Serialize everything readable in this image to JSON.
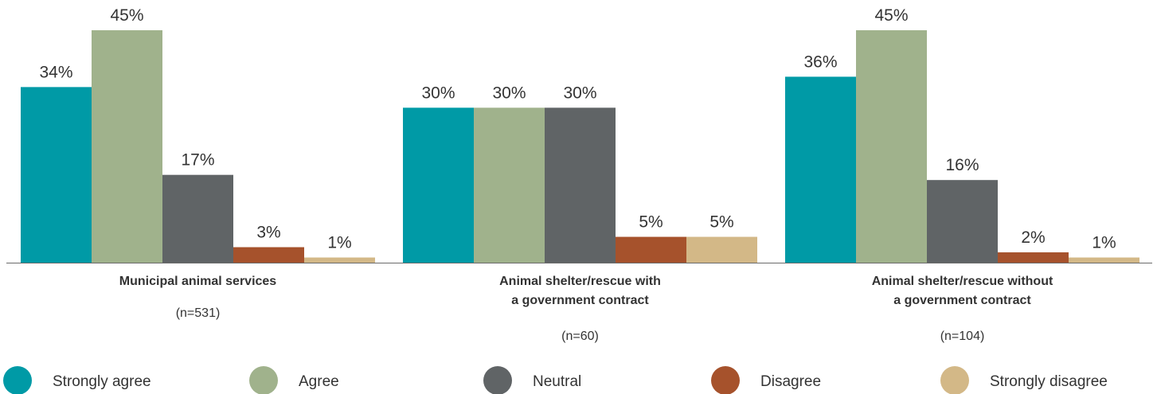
{
  "chart_data": {
    "type": "bar",
    "title": "",
    "xlabel": "",
    "ylabel": "",
    "ylim": [
      0,
      45
    ],
    "grid": false,
    "legend_position": "bottom",
    "value_suffix": "%",
    "categories": [
      {
        "label_lines": [
          "Municipal animal services"
        ],
        "n_label": "(n=531)"
      },
      {
        "label_lines": [
          "Animal shelter/rescue with",
          "a government contract"
        ],
        "n_label": "(n=60)"
      },
      {
        "label_lines": [
          "Animal shelter/rescue without",
          "a government contract"
        ],
        "n_label": "(n=104)"
      }
    ],
    "series": [
      {
        "name": "Strongly agree",
        "color": "#009aa6",
        "values": [
          34,
          30,
          36
        ]
      },
      {
        "name": "Agree",
        "color": "#a0b28c",
        "values": [
          45,
          30,
          45
        ]
      },
      {
        "name": "Neutral",
        "color": "#606466",
        "values": [
          17,
          30,
          16
        ]
      },
      {
        "name": "Disagree",
        "color": "#a6522c",
        "values": [
          3,
          5,
          2
        ]
      },
      {
        "name": "Strongly disagree",
        "color": "#d3b887",
        "values": [
          1,
          5,
          1
        ]
      }
    ]
  }
}
